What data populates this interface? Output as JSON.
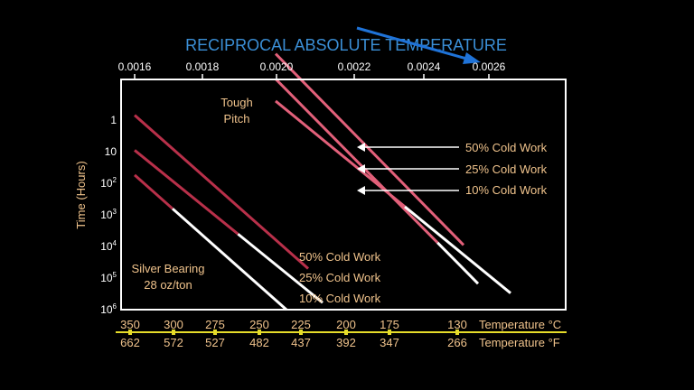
{
  "chart_data": {
    "type": "line",
    "title": "RECIPROCAL ABSOLUTE TEMPERATURE",
    "x_top": {
      "label": "RECIPROCAL ABSOLUTE TEMPERATURE",
      "range": [
        0.0016,
        0.0027
      ],
      "ticks": [
        "0.0016",
        "0.0018",
        "0.0020",
        "0.0022",
        "0.0024",
        "0.0026"
      ]
    },
    "y": {
      "label": "Time (Hours)",
      "scale": "log",
      "ticks": [
        {
          "base": "1",
          "exp": ""
        },
        {
          "base": "10",
          "exp": ""
        },
        {
          "base": "10",
          "exp": "2"
        },
        {
          "base": "10",
          "exp": "3"
        },
        {
          "base": "10",
          "exp": "4"
        },
        {
          "base": "10",
          "exp": "5"
        },
        {
          "base": "10",
          "exp": "6"
        }
      ]
    },
    "temp_scale_c": {
      "label": "Temperature °C",
      "values": [
        "350",
        "300",
        "275",
        "250",
        "225",
        "200",
        "175",
        "130"
      ]
    },
    "temp_scale_f": {
      "label": "Temperature °F",
      "values": [
        "662",
        "572",
        "527",
        "482",
        "437",
        "392",
        "347",
        "266"
      ]
    },
    "groups": [
      {
        "name": "Silver Bearing 28 oz/ton",
        "label_lines": [
          "Silver Bearing",
          "28 oz/ton"
        ],
        "series": [
          {
            "name": "50% Cold Work",
            "points": [
              [
                0.0016,
                0.7
              ],
              [
                0.00208,
                50000
              ]
            ]
          },
          {
            "name": "25% Cold Work",
            "points": [
              [
                0.0016,
                9
              ],
              [
                0.00212,
                600000
              ]
            ]
          },
          {
            "name": "10% Cold Work",
            "points": [
              [
                0.0016,
                55
              ],
              [
                0.00202,
                1000000
              ]
            ]
          }
        ],
        "labels": [
          "50% Cold Work",
          "25% Cold Work",
          "10% Cold Work"
        ]
      },
      {
        "name": "Tough Pitch",
        "label_lines": [
          "Tough",
          "Pitch"
        ],
        "series": [
          {
            "name": "50% Cold Work",
            "points": [
              [
                0.00199,
                0.008
              ],
              [
                0.00251,
                9000
              ]
            ]
          },
          {
            "name": "25% Cold Work",
            "points": [
              [
                0.00199,
                0.05
              ],
              [
                0.00255,
                150000
              ]
            ]
          },
          {
            "name": "10% Cold Work",
            "points": [
              [
                0.00199,
                0.25
              ],
              [
                0.00264,
                300000
              ]
            ]
          }
        ],
        "labels": [
          "50% Cold Work",
          "25% Cold Work",
          "10% Cold Work"
        ]
      }
    ],
    "colors": {
      "axis": "#ffffff",
      "tick_text": "#ffffff",
      "label_text": "#f0c38c",
      "title": "#3b8fd6",
      "arrow_blue": "#1f73d8",
      "line_dark_red": "#b8304a",
      "line_pink": "#e2607a",
      "line_white": "#ffffff",
      "temp_axis": "#e6dc2a"
    }
  }
}
